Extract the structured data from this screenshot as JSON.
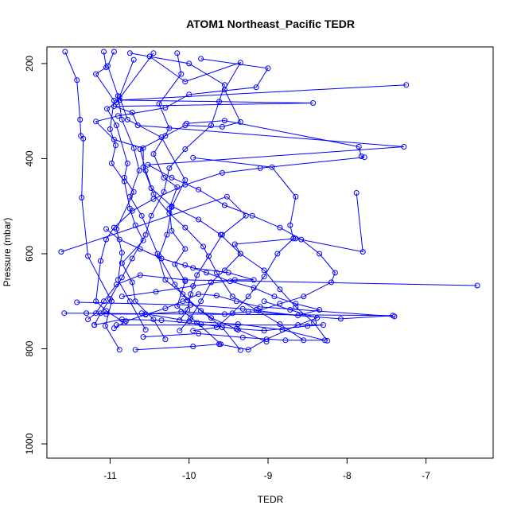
{
  "chart_data": {
    "type": "line",
    "title": "ATOM1 Northeast_Pacific TEDR",
    "xlabel": "TEDR",
    "ylabel": "Pressure (mbar)",
    "xlim": [
      -11.8,
      -6.15
    ],
    "ylim": [
      1030,
      165
    ],
    "y_reversed": true,
    "x_ticks": [
      -11,
      -10,
      -9,
      -8,
      -7
    ],
    "x_tick_labels": [
      "-11",
      "-10",
      "-9",
      "-8",
      "-7"
    ],
    "y_ticks": [
      200,
      400,
      600,
      800,
      1000
    ],
    "y_tick_labels": [
      "200",
      "400",
      "600",
      "800",
      "1000"
    ],
    "grid": false,
    "color": "#0000ff",
    "marker": "open-circle",
    "series": [
      {
        "points": [
          [
            -11.57,
            175
          ],
          [
            -11.42,
            235
          ],
          [
            -11.38,
            318
          ],
          [
            -11.37,
            352
          ],
          [
            -11.34,
            358
          ],
          [
            -11.36,
            482
          ],
          [
            -11.28,
            605
          ],
          [
            -10.98,
            700
          ],
          [
            -11.06,
            752
          ],
          [
            -10.88,
            802
          ]
        ]
      },
      {
        "points": [
          [
            -11.08,
            175
          ],
          [
            -11.05,
            208
          ],
          [
            -11.18,
            222
          ],
          [
            -10.95,
            278
          ],
          [
            -11.0,
            338
          ],
          [
            -10.93,
            372
          ],
          [
            -10.98,
            410
          ],
          [
            -10.82,
            448
          ],
          [
            -10.75,
            505
          ],
          [
            -10.68,
            540
          ],
          [
            -10.58,
            572
          ],
          [
            -10.85,
            620
          ],
          [
            -10.72,
            660
          ],
          [
            -10.68,
            700
          ],
          [
            -10.45,
            738
          ],
          [
            -10.3,
            780
          ]
        ]
      },
      {
        "points": [
          [
            -10.95,
            175
          ],
          [
            -11.03,
            205
          ],
          [
            -10.9,
            268
          ],
          [
            -10.85,
            318
          ],
          [
            -10.7,
            378
          ],
          [
            -10.63,
            425
          ],
          [
            -10.75,
            480
          ],
          [
            -10.6,
            520
          ],
          [
            -10.4,
            600
          ],
          [
            -10.3,
            655
          ],
          [
            -10.08,
            685
          ],
          [
            -9.85,
            720
          ],
          [
            -9.58,
            755
          ],
          [
            -9.35,
            803
          ]
        ]
      },
      {
        "points": [
          [
            -10.7,
            192
          ],
          [
            -10.88,
            270
          ],
          [
            -10.78,
            318
          ],
          [
            -10.35,
            355
          ],
          [
            -10.05,
            445
          ],
          [
            -10.22,
            502
          ],
          [
            -10.28,
            560
          ],
          [
            -10.38,
            605
          ],
          [
            -10.18,
            665
          ],
          [
            -10.02,
            698
          ],
          [
            -9.72,
            735
          ],
          [
            -9.38,
            760
          ],
          [
            -9.02,
            785
          ]
        ]
      },
      {
        "points": [
          [
            -10.45,
            178
          ],
          [
            -10.92,
            282
          ],
          [
            -11.04,
            295
          ],
          [
            -10.92,
            330
          ],
          [
            -10.78,
            410
          ],
          [
            -10.82,
            440
          ],
          [
            -10.7,
            470
          ],
          [
            -10.92,
            548
          ],
          [
            -10.85,
            598
          ],
          [
            -10.9,
            655
          ],
          [
            -10.75,
            700
          ],
          [
            -10.55,
            760
          ]
        ]
      },
      {
        "points": [
          [
            -10.15,
            178
          ],
          [
            -10.1,
            222
          ],
          [
            -10.38,
            285
          ],
          [
            -10.25,
            336
          ],
          [
            -10.45,
            390
          ],
          [
            -10.32,
            440
          ],
          [
            -10.15,
            460
          ],
          [
            -10.25,
            505
          ],
          [
            -10.22,
            552
          ],
          [
            -10.05,
            590
          ],
          [
            -10.18,
            622
          ],
          [
            -10.05,
            658
          ],
          [
            -10.15,
            710
          ],
          [
            -9.9,
            745
          ],
          [
            -9.6,
            790
          ]
        ]
      },
      {
        "points": [
          [
            -10.5,
            185
          ],
          [
            -10.05,
            238
          ],
          [
            -9.35,
            198
          ],
          [
            -9.55,
            255
          ],
          [
            -9.35,
            323
          ],
          [
            -9.58,
            333
          ],
          [
            -10.05,
            330
          ],
          [
            -10.3,
            352
          ],
          [
            -10.62,
            380
          ],
          [
            -10.55,
            425
          ],
          [
            -10.45,
            475
          ],
          [
            -10.25,
            515
          ],
          [
            -10.05,
            545
          ],
          [
            -9.82,
            585
          ],
          [
            -9.65,
            640
          ],
          [
            -9.45,
            690
          ],
          [
            -9.15,
            718
          ],
          [
            -8.85,
            748
          ],
          [
            -8.55,
            782
          ]
        ]
      },
      {
        "points": [
          [
            -9.85,
            190
          ],
          [
            -9.0,
            210
          ],
          [
            -9.15,
            250
          ],
          [
            -10.0,
            265
          ],
          [
            -10.3,
            293
          ],
          [
            -10.9,
            310
          ],
          [
            -11.18,
            322
          ],
          [
            -10.95,
            360
          ],
          [
            -10.58,
            378
          ],
          [
            -10.58,
            418
          ],
          [
            -10.48,
            462
          ],
          [
            -10.22,
            500
          ],
          [
            -9.88,
            528
          ],
          [
            -9.6,
            560
          ],
          [
            -9.35,
            600
          ],
          [
            -9.05,
            635
          ],
          [
            -8.85,
            675
          ],
          [
            -8.65,
            712
          ],
          [
            -8.42,
            745
          ],
          [
            -8.25,
            783
          ]
        ]
      },
      {
        "points": [
          [
            -7.25,
            245
          ],
          [
            -10.88,
            277
          ],
          [
            -8.43,
            283
          ],
          [
            -10.95,
            290
          ],
          [
            -10.72,
            303
          ],
          [
            -10.65,
            330
          ],
          [
            -7.28,
            375
          ],
          [
            -10.52,
            413
          ],
          [
            -10.22,
            440
          ],
          [
            -9.88,
            465
          ],
          [
            -9.55,
            498
          ],
          [
            -9.2,
            520
          ],
          [
            -8.85,
            545
          ],
          [
            -8.58,
            570
          ],
          [
            -8.35,
            600
          ],
          [
            -8.15,
            640
          ],
          [
            -8.2,
            660
          ],
          [
            -8.55,
            690
          ],
          [
            -8.85,
            705
          ],
          [
            -9.12,
            720
          ]
        ]
      },
      {
        "points": [
          [
            -10.03,
            326
          ],
          [
            -9.55,
            320
          ],
          [
            -7.85,
            375
          ],
          [
            -7.82,
            395
          ],
          [
            -7.78,
            397
          ],
          [
            -9.1,
            420
          ],
          [
            -9.58,
            430
          ],
          [
            -10.05,
            455
          ],
          [
            -10.45,
            485
          ],
          [
            -10.72,
            510
          ],
          [
            -10.95,
            545
          ],
          [
            -11.05,
            570
          ],
          [
            -11.12,
            615
          ],
          [
            -11.18,
            700
          ],
          [
            -11.05,
            720
          ],
          [
            -10.82,
            745
          ]
        ]
      },
      {
        "points": [
          [
            -9.95,
            398
          ],
          [
            -8.95,
            418
          ],
          [
            -8.65,
            480
          ],
          [
            -8.72,
            540
          ],
          [
            -8.68,
            568
          ],
          [
            -8.88,
            600
          ],
          [
            -9.05,
            648
          ],
          [
            -9.25,
            690
          ],
          [
            -9.45,
            725
          ],
          [
            -9.65,
            755
          ],
          [
            -9.95,
            762
          ]
        ]
      },
      {
        "points": [
          [
            -7.88,
            472
          ],
          [
            -7.8,
            596
          ],
          [
            -8.65,
            568
          ],
          [
            -9.42,
            580
          ],
          [
            -9.35,
            600
          ],
          [
            -9.55,
            635
          ],
          [
            -9.72,
            660
          ],
          [
            -9.85,
            700
          ],
          [
            -9.98,
            735
          ],
          [
            -10.12,
            762
          ]
        ]
      },
      {
        "points": [
          [
            -11.62,
            596
          ],
          [
            -9.52,
            480
          ],
          [
            -9.28,
            520
          ],
          [
            -9.58,
            560
          ],
          [
            -9.75,
            605
          ],
          [
            -9.9,
            645
          ],
          [
            -9.98,
            685
          ],
          [
            -10.02,
            718
          ],
          [
            -10.12,
            740
          ]
        ]
      },
      {
        "points": [
          [
            -6.35,
            667
          ],
          [
            -10.05,
            655
          ],
          [
            -10.62,
            645
          ],
          [
            -10.92,
            665
          ],
          [
            -11.08,
            700
          ],
          [
            -11.18,
            725
          ],
          [
            -11.28,
            738
          ]
        ]
      },
      {
        "points": [
          [
            -7.4,
            732
          ],
          [
            -9.1,
            712
          ],
          [
            -9.4,
            700
          ],
          [
            -9.65,
            688
          ],
          [
            -9.88,
            685
          ],
          [
            -10.08,
            700
          ],
          [
            -10.3,
            715
          ],
          [
            -10.55,
            728
          ],
          [
            -10.8,
            742
          ],
          [
            -10.95,
            757
          ]
        ]
      },
      {
        "points": [
          [
            -11.58,
            725
          ],
          [
            -7.42,
            730
          ],
          [
            -8.08,
            737
          ],
          [
            -9.25,
            722
          ],
          [
            -9.55,
            727
          ],
          [
            -10.1,
            722
          ],
          [
            -10.55,
            727
          ],
          [
            -11.05,
            727
          ],
          [
            -11.3,
            725
          ]
        ]
      },
      {
        "points": [
          [
            -10.92,
            750
          ],
          [
            -8.3,
            750
          ],
          [
            -8.5,
            752
          ],
          [
            -9.05,
            762
          ],
          [
            -9.4,
            758
          ],
          [
            -9.85,
            748
          ],
          [
            -10.35,
            740
          ],
          [
            -10.85,
            738
          ],
          [
            -11.2,
            750
          ]
        ]
      },
      {
        "points": [
          [
            -11.42,
            702
          ],
          [
            -9.98,
            708
          ],
          [
            -9.32,
            716
          ],
          [
            -8.62,
            730
          ],
          [
            -8.35,
            718
          ],
          [
            -8.65,
            705
          ],
          [
            -8.92,
            690
          ],
          [
            -9.18,
            672
          ],
          [
            -9.48,
            658
          ],
          [
            -9.78,
            640
          ],
          [
            -10.05,
            624
          ]
        ]
      },
      {
        "points": [
          [
            -10.58,
            775
          ],
          [
            -9.88,
            768
          ],
          [
            -9.32,
            776
          ],
          [
            -8.78,
            782
          ],
          [
            -8.28,
            782
          ],
          [
            -8.82,
            760
          ],
          [
            -9.38,
            748
          ],
          [
            -10.0,
            742
          ],
          [
            -10.6,
            725
          ]
        ]
      },
      {
        "points": [
          [
            -10.68,
            802
          ],
          [
            -9.95,
            795
          ],
          [
            -9.62,
            790
          ],
          [
            -9.25,
            802
          ],
          [
            -9.02,
            780
          ],
          [
            -8.62,
            750
          ],
          [
            -8.38,
            735
          ],
          [
            -8.72,
            718
          ],
          [
            -9.05,
            700
          ]
        ]
      },
      {
        "points": [
          [
            -10.85,
            690
          ],
          [
            -10.42,
            680
          ],
          [
            -9.95,
            668
          ],
          [
            -9.42,
            655
          ],
          [
            -9.18,
            655
          ],
          [
            -9.5,
            640
          ],
          [
            -9.95,
            630
          ],
          [
            -10.35,
            610
          ],
          [
            -10.62,
            590
          ],
          [
            -10.88,
            570
          ],
          [
            -11.05,
            548
          ]
        ]
      },
      {
        "points": [
          [
            -10.75,
            178
          ],
          [
            -10.0,
            200
          ],
          [
            -9.55,
            245
          ],
          [
            -9.62,
            280
          ],
          [
            -9.72,
            330
          ],
          [
            -10.05,
            380
          ],
          [
            -10.25,
            420
          ],
          [
            -10.32,
            470
          ],
          [
            -10.48,
            520
          ],
          [
            -10.55,
            560
          ],
          [
            -10.72,
            610
          ],
          [
            -10.85,
            650
          ],
          [
            -11.0,
            695
          ],
          [
            -11.12,
            725
          ],
          [
            -11.2,
            750
          ]
        ]
      }
    ]
  }
}
